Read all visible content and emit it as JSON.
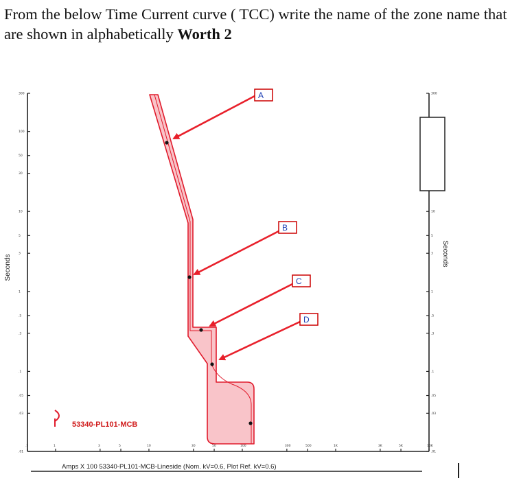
{
  "question": {
    "text": "From the below Time Current curve ( TCC) write the name of the zone name that are shown in  alphabetically ",
    "worth": "Worth  2"
  },
  "diagram": {
    "y_axis_title_left": "Seconds",
    "y_axis_title_right": "Seconds",
    "x_axis_caption": "Amps  X  100   53340-PL101-MCB-Lineside (Nom. kV=0.6, Plot Ref. kV=0.6)",
    "legend_label": "53340-PL101-MCB",
    "zone_labels": [
      "A",
      "B",
      "C",
      "D"
    ],
    "y_tick_labels_left": [
      "300",
      "100",
      "50",
      "30",
      "10",
      "5",
      "3",
      "1",
      ".5",
      ".3",
      ".1",
      ".05",
      ".03",
      ".01"
    ],
    "y_tick_labels_right": [
      "300",
      "10",
      "5",
      "3",
      "1",
      ".5",
      ".3",
      ".1",
      ".05",
      ".03",
      ".01"
    ],
    "x_tick_labels": [
      ".5",
      "1",
      "3",
      "5",
      "10",
      "30",
      "50",
      "100",
      "300",
      "500",
      "1K",
      "3K",
      "5K",
      "10K"
    ],
    "colors": {
      "curve_fill": "#f9c4c9",
      "curve_line": "#e01b2c",
      "arrow": "#e8202b",
      "label_box_border": "#cc0000",
      "label_text": "#1d3fb4",
      "legend_text": "#d01c1c"
    }
  }
}
